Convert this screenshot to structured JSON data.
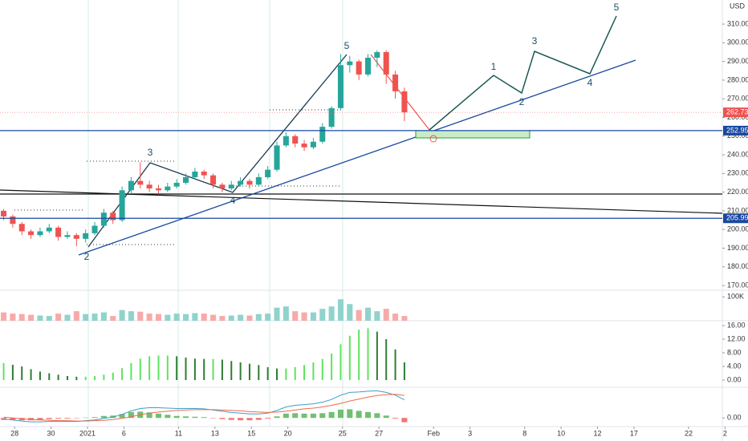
{
  "chart_data": [
    {
      "type": "candlestick",
      "currency": "USD",
      "x": [
        -0.6,
        -0.1,
        0.4,
        0.9,
        1.4,
        1.9,
        2.4,
        2.9,
        3.4,
        3.9,
        4.4,
        4.9,
        5.4,
        5.9,
        6.4,
        6.9,
        7.4,
        7.9,
        8.4,
        8.9,
        9.4,
        9.9,
        10.4,
        10.9,
        11.4,
        11.9,
        12.4,
        12.9,
        13.4,
        13.9,
        14.4,
        14.9,
        15.4,
        15.9,
        16.4,
        16.9,
        17.4,
        17.9,
        18.4,
        18.9,
        19.4,
        19.9,
        20.4,
        20.9,
        21.4
      ],
      "open": [
        210,
        207,
        203,
        199,
        197,
        199,
        201,
        196,
        197,
        195,
        198,
        202,
        209,
        205,
        221,
        226,
        224,
        222,
        221,
        223,
        225,
        228,
        231,
        229,
        224,
        222,
        224,
        226,
        224,
        228,
        232,
        245,
        250,
        246,
        244,
        247,
        255,
        265,
        288,
        290,
        283,
        292,
        295,
        283,
        274
      ],
      "high": [
        211,
        208,
        204,
        200,
        201,
        203,
        202,
        199,
        198,
        200,
        204,
        211,
        210,
        223,
        228,
        236,
        226,
        224,
        225,
        227,
        230,
        233,
        232,
        230,
        225,
        226,
        228,
        227,
        230,
        234,
        247,
        252,
        251,
        248,
        249,
        257,
        266,
        294,
        293,
        291,
        294,
        296,
        296,
        285,
        276
      ],
      "low": [
        205,
        201,
        197,
        195,
        196,
        198,
        194,
        195,
        191,
        193,
        197,
        201,
        203,
        204,
        219,
        222,
        220,
        219,
        220,
        222,
        224,
        227,
        227,
        222,
        220,
        221,
        223,
        222,
        223,
        227,
        231,
        244,
        244,
        242,
        243,
        246,
        254,
        264,
        284,
        280,
        282,
        287,
        278,
        270,
        258
      ],
      "close": [
        207,
        203,
        199,
        197,
        199,
        201,
        196,
        197,
        195,
        198,
        202,
        209,
        205,
        221,
        226,
        224,
        222,
        221,
        223,
        225,
        228,
        231,
        229,
        224,
        222,
        224,
        226,
        224,
        228,
        232,
        245,
        250,
        246,
        244,
        247,
        255,
        265,
        288,
        290,
        283,
        292,
        295,
        283,
        274,
        262.73
      ],
      "up_color": "#26a69a",
      "down_color": "#ef5350",
      "xlim": [
        -0.8,
        38.85
      ],
      "xticks": [
        {
          "value": 0,
          "label": "28"
        },
        {
          "value": 2,
          "label": "30"
        },
        {
          "value": 4,
          "label": "2021"
        },
        {
          "value": 6,
          "label": "6"
        },
        {
          "value": 9,
          "label": "11"
        },
        {
          "value": 11,
          "label": "13"
        },
        {
          "value": 13,
          "label": "15"
        },
        {
          "value": 15,
          "label": "20"
        },
        {
          "value": 18,
          "label": "25"
        },
        {
          "value": 20,
          "label": "27"
        },
        {
          "value": 23,
          "label": "Feb"
        },
        {
          "value": 25,
          "label": "3"
        },
        {
          "value": 28,
          "label": "8"
        },
        {
          "value": 30,
          "label": "10"
        },
        {
          "value": 32,
          "label": "12"
        },
        {
          "value": 34,
          "label": "17"
        },
        {
          "value": 37,
          "label": "22"
        },
        {
          "value": 39,
          "label": "2"
        }
      ],
      "ylim": [
        167.45,
        322.9
      ],
      "yticks": [
        {
          "value": 310,
          "label": "310.00"
        },
        {
          "value": 300,
          "label": "300.00"
        },
        {
          "value": 290,
          "label": "290.00"
        },
        {
          "value": 280,
          "label": "280.00"
        },
        {
          "value": 270,
          "label": "270.00"
        },
        {
          "value": 260,
          "label": "260.00"
        },
        {
          "value": 250,
          "label": "250.00"
        },
        {
          "value": 240,
          "label": "240.00"
        },
        {
          "value": 230,
          "label": "230.00"
        },
        {
          "value": 220,
          "label": "220.00"
        },
        {
          "value": 210,
          "label": "210.00"
        },
        {
          "value": 200,
          "label": "200.00"
        },
        {
          "value": 190,
          "label": "190.00"
        },
        {
          "value": 180,
          "label": "180.00"
        },
        {
          "value": 170,
          "label": "170.00"
        }
      ],
      "price_lines": [
        {
          "value": 262.73,
          "color": "#ef5350"
        },
        {
          "value": 252.95,
          "color": "#1848a0"
        },
        {
          "value": 205.99,
          "color": "#1848a0"
        }
      ],
      "annotations": [
        "3",
        "2",
        "4",
        "5",
        "1",
        "2",
        "3",
        "4",
        "5"
      ]
    },
    {
      "type": "bar",
      "values": [
        35,
        30,
        28,
        25,
        22,
        20,
        30,
        25,
        40,
        28,
        30,
        35,
        20,
        45,
        40,
        38,
        30,
        28,
        25,
        30,
        28,
        32,
        30,
        25,
        20,
        22,
        25,
        22,
        28,
        30,
        55,
        60,
        40,
        35,
        35,
        50,
        60,
        90,
        70,
        45,
        55,
        40,
        50,
        30,
        20
      ],
      "up_color": "#8fd3cc",
      "down_color": "#f7aaa8",
      "ylim": [
        0,
        128
      ],
      "yticks": [
        {
          "value": 100,
          "label": "100K"
        }
      ]
    },
    {
      "type": "bar",
      "values": [
        5,
        4.5,
        4,
        3.2,
        2.5,
        2,
        1.6,
        1.2,
        1,
        1,
        1.2,
        1.6,
        2.2,
        3.5,
        5,
        6.3,
        7,
        7.2,
        7.2,
        7,
        6.6,
        6.3,
        6.2,
        6.2,
        6,
        5.6,
        5.2,
        4.8,
        4.4,
        3.8,
        3.4,
        3.4,
        3.8,
        4.4,
        5.2,
        6.2,
        7.8,
        10.5,
        13,
        14.8,
        15.2,
        14.2,
        12,
        9,
        5.2
      ],
      "rising_color": "#5ee35e",
      "falling_color": "#2e7d32",
      "ylim": [
        -2.1,
        17.4
      ],
      "yticks": [
        {
          "value": 16,
          "label": "16.00"
        },
        {
          "value": 12,
          "label": "12.00"
        },
        {
          "value": 8,
          "label": "8.00"
        },
        {
          "value": 4,
          "label": "4.00"
        },
        {
          "value": 0,
          "label": "0.00"
        }
      ]
    },
    {
      "type": "macd",
      "lines": [
        {
          "color": "#3aa0c8",
          "values": [
            -0.3,
            -0.5,
            -0.8,
            -1,
            -1,
            -0.9,
            -0.9,
            -0.9,
            -0.9,
            -0.7,
            -0.5,
            -0.1,
            0.2,
            0.9,
            1.8,
            2.4,
            2.6,
            2.6,
            2.5,
            2.4,
            2.4,
            2.4,
            2.3,
            2,
            1.7,
            1.4,
            1.2,
            1,
            1,
            1.2,
            1.9,
            2.8,
            3.2,
            3.4,
            3.6,
            4,
            4.7,
            5.8,
            6.5,
            6.6,
            6.8,
            6.9,
            6.5,
            5.8,
            4.6
          ]
        },
        {
          "color": "#f06a4a",
          "values": [
            0.2,
            0,
            -0.2,
            -0.4,
            -0.5,
            -0.6,
            -0.7,
            -0.7,
            -0.8,
            -0.8,
            -0.7,
            -0.6,
            -0.4,
            -0.1,
            0.3,
            0.8,
            1.2,
            1.5,
            1.7,
            1.9,
            2,
            2.1,
            2.1,
            2.1,
            2,
            1.9,
            1.8,
            1.6,
            1.5,
            1.4,
            1.5,
            1.7,
            2,
            2.3,
            2.5,
            2.8,
            3.2,
            3.7,
            4.3,
            4.8,
            5.3,
            5.7,
            5.9,
            6,
            5.7
          ]
        }
      ],
      "bars": {
        "up_color": "#4caf50",
        "down_color": "#ef5350",
        "values": [
          -0.5,
          -0.5,
          -0.6,
          -0.6,
          -0.5,
          -0.3,
          -0.2,
          -0.2,
          -0.1,
          0.1,
          0.2,
          0.5,
          0.6,
          1,
          1.5,
          1.6,
          1.4,
          1.1,
          0.8,
          0.5,
          0.4,
          0.3,
          0.2,
          -0.1,
          -0.3,
          -0.5,
          -0.6,
          -0.6,
          -0.5,
          -0.2,
          0.4,
          1.1,
          1.2,
          1.1,
          1.1,
          1.2,
          1.5,
          2.1,
          2.2,
          1.8,
          1.5,
          1.2,
          0.6,
          -0.2,
          -1.1
        ]
      },
      "ylim": [
        -2.2,
        7.8
      ],
      "yticks": [
        {
          "value": 0,
          "label": "0.00"
        }
      ]
    }
  ]
}
